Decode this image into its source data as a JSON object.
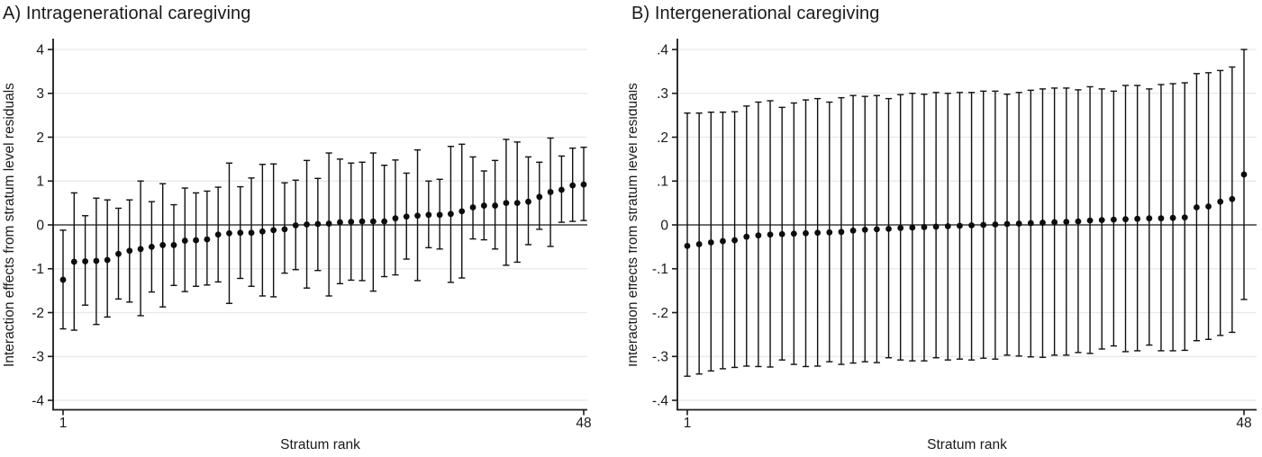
{
  "figure": {
    "background": "#ffffff",
    "panels": [
      {
        "id": "A",
        "title_ref": "chart_data.0.title"
      },
      {
        "id": "B",
        "title_ref": "chart_data.1.title"
      }
    ]
  },
  "colors": {
    "marker": "#0d0d0d",
    "whisker": "#111111",
    "grid": "#e7e7e7",
    "zero_line": "#3f3f3f",
    "axis": "#1a1a1a",
    "text": "#1a1a1a",
    "background": "#ffffff"
  },
  "chart_data": [
    {
      "type": "scatter",
      "subtype": "point_estimates_with_95ci_whiskers",
      "title": "A) Intragenerational caregiving",
      "xlabel": "Stratum rank",
      "ylabel": "Interaction effects from stratum level residuals",
      "n_strata": 48,
      "x_range": [
        1,
        48
      ],
      "ylim": [
        -4.2,
        4.2
      ],
      "grid": "horizontal",
      "zero_line": true,
      "legend": "none",
      "yticks": {
        "values": [
          4,
          3,
          2,
          1,
          0,
          -1,
          -2,
          -3,
          -4
        ],
        "labels": [
          "4",
          "3",
          "2",
          "1",
          "0",
          "-1",
          "-2",
          "-3",
          "-4"
        ]
      },
      "xticks": {
        "values": [
          1,
          48
        ],
        "labels": [
          "1",
          "48"
        ]
      },
      "estimates": [
        -1.25,
        -0.84,
        -0.83,
        -0.82,
        -0.8,
        -0.66,
        -0.59,
        -0.55,
        -0.5,
        -0.46,
        -0.46,
        -0.36,
        -0.35,
        -0.33,
        -0.22,
        -0.19,
        -0.18,
        -0.18,
        -0.15,
        -0.12,
        -0.1,
        -0.01,
        0.01,
        0.02,
        0.03,
        0.06,
        0.07,
        0.08,
        0.08,
        0.08,
        0.15,
        0.19,
        0.21,
        0.23,
        0.23,
        0.25,
        0.31,
        0.4,
        0.44,
        0.44,
        0.5,
        0.5,
        0.53,
        0.64,
        0.75,
        0.8,
        0.9,
        0.92
      ],
      "ci_low": [
        -2.37,
        -2.4,
        -1.83,
        -2.27,
        -2.1,
        -1.69,
        -1.76,
        -2.07,
        -1.53,
        -1.87,
        -1.38,
        -1.52,
        -1.4,
        -1.37,
        -1.3,
        -1.79,
        -1.22,
        -1.4,
        -1.62,
        -1.64,
        -1.1,
        -1.02,
        -1.44,
        -1.04,
        -1.62,
        -1.34,
        -1.26,
        -1.27,
        -1.51,
        -1.18,
        -1.14,
        -0.78,
        -1.27,
        -0.52,
        -0.55,
        -1.31,
        -1.21,
        -0.32,
        -0.34,
        -0.55,
        -0.92,
        -0.85,
        -0.45,
        -0.1,
        -0.49,
        0.06,
        0.08,
        0.1
      ],
      "ci_high": [
        -0.12,
        0.73,
        0.21,
        0.61,
        0.57,
        0.38,
        0.57,
        1.0,
        0.53,
        0.94,
        0.46,
        0.84,
        0.73,
        0.77,
        0.86,
        1.41,
        0.87,
        1.07,
        1.38,
        1.39,
        0.96,
        1.02,
        1.47,
        1.06,
        1.64,
        1.5,
        1.41,
        1.43,
        1.64,
        1.36,
        1.48,
        1.18,
        1.71,
        1.0,
        1.04,
        1.79,
        1.84,
        1.55,
        1.23,
        1.47,
        1.95,
        1.89,
        1.55,
        1.43,
        1.98,
        1.57,
        1.75,
        1.77
      ]
    },
    {
      "type": "scatter",
      "subtype": "point_estimates_with_95ci_whiskers",
      "title": "B) Intergenerational caregiving",
      "xlabel": "Stratum rank",
      "ylabel": "Interaction effects from stratum level residuals",
      "n_strata": 48,
      "x_range": [
        1,
        48
      ],
      "ylim": [
        -0.42,
        0.42
      ],
      "grid": "horizontal",
      "zero_line": true,
      "legend": "none",
      "yticks": {
        "values": [
          0.4,
          0.3,
          0.2,
          0.1,
          0,
          -0.1,
          -0.2,
          -0.3,
          -0.4
        ],
        "labels": [
          ".4",
          ".3",
          ".2",
          ".1",
          "0",
          "-.1",
          "-.2",
          "-.3",
          "-.4"
        ]
      },
      "xticks": {
        "values": [
          1,
          48
        ],
        "labels": [
          "1",
          "48"
        ]
      },
      "estimates": [
        -0.048,
        -0.044,
        -0.04,
        -0.037,
        -0.035,
        -0.027,
        -0.024,
        -0.022,
        -0.021,
        -0.02,
        -0.019,
        -0.018,
        -0.017,
        -0.016,
        -0.013,
        -0.011,
        -0.01,
        -0.009,
        -0.007,
        -0.006,
        -0.005,
        -0.004,
        -0.003,
        -0.002,
        -0.001,
        0.0,
        0.001,
        0.002,
        0.003,
        0.004,
        0.005,
        0.006,
        0.007,
        0.008,
        0.01,
        0.011,
        0.012,
        0.013,
        0.014,
        0.015,
        0.015,
        0.016,
        0.017,
        0.04,
        0.042,
        0.053,
        0.059,
        0.115
      ],
      "ci_low": [
        -0.345,
        -0.34,
        -0.333,
        -0.328,
        -0.325,
        -0.322,
        -0.323,
        -0.324,
        -0.308,
        -0.318,
        -0.323,
        -0.322,
        -0.312,
        -0.318,
        -0.315,
        -0.312,
        -0.314,
        -0.303,
        -0.308,
        -0.31,
        -0.31,
        -0.303,
        -0.308,
        -0.306,
        -0.308,
        -0.304,
        -0.306,
        -0.297,
        -0.299,
        -0.301,
        -0.302,
        -0.297,
        -0.297,
        -0.291,
        -0.293,
        -0.283,
        -0.276,
        -0.289,
        -0.287,
        -0.274,
        -0.287,
        -0.287,
        -0.286,
        -0.264,
        -0.261,
        -0.252,
        -0.245,
        -0.17
      ],
      "ci_high": [
        0.255,
        0.255,
        0.257,
        0.257,
        0.258,
        0.271,
        0.28,
        0.283,
        0.268,
        0.278,
        0.285,
        0.288,
        0.28,
        0.29,
        0.295,
        0.293,
        0.295,
        0.288,
        0.297,
        0.3,
        0.298,
        0.302,
        0.3,
        0.302,
        0.302,
        0.305,
        0.305,
        0.298,
        0.302,
        0.307,
        0.31,
        0.312,
        0.312,
        0.308,
        0.315,
        0.31,
        0.305,
        0.318,
        0.318,
        0.31,
        0.32,
        0.322,
        0.324,
        0.345,
        0.347,
        0.352,
        0.36,
        0.4
      ]
    }
  ]
}
